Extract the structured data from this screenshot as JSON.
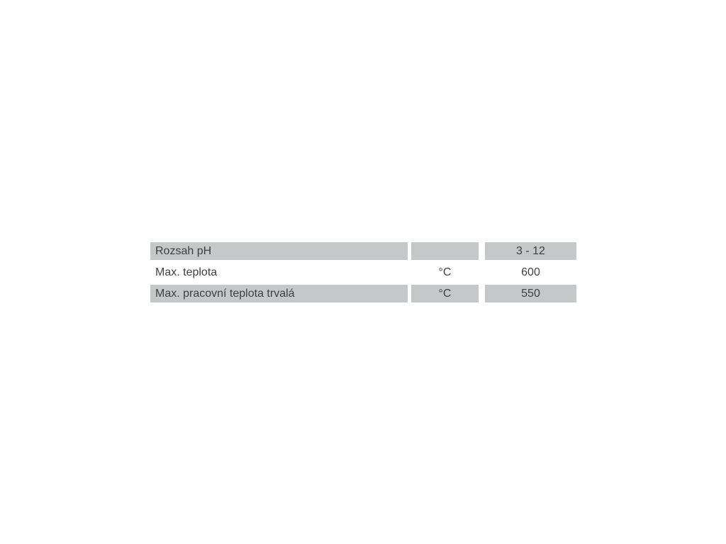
{
  "colors": {
    "page_background": "#ffffff",
    "shaded_row_background": "#c6c7c9",
    "text": "#3f3e40"
  },
  "spec_table": {
    "rows": [
      {
        "label": "Rozsah pH",
        "unit": "",
        "value": "3 - 12",
        "shaded": true
      },
      {
        "label": "Max. teplota",
        "unit": "°C",
        "value": "600",
        "shaded": false
      },
      {
        "label": "Max. pracovní teplota trvalá",
        "unit": "°C",
        "value": "550",
        "shaded": true
      }
    ]
  }
}
